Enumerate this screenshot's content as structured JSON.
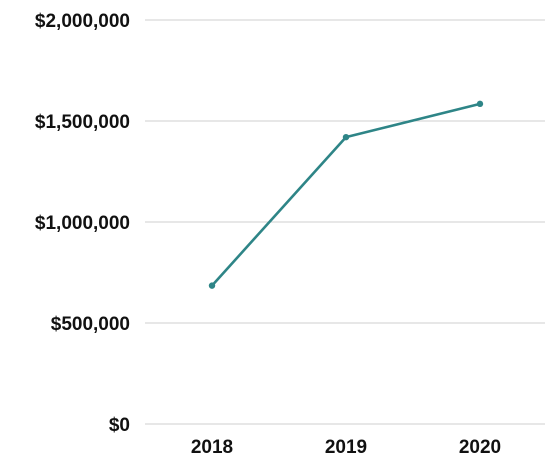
{
  "chart_data": {
    "type": "line",
    "categories": [
      "2018",
      "2019",
      "2020"
    ],
    "series": [
      {
        "values": [
          685000,
          1420000,
          1585000
        ],
        "color": "#2E8587"
      }
    ],
    "ylim": [
      0,
      2000000
    ],
    "yticks": [
      0,
      500000,
      1000000,
      1500000,
      2000000
    ],
    "ytick_labels": [
      "$0",
      "$500,000",
      "$1,000,000",
      "$1,500,000",
      "$2,000,000"
    ],
    "grid": true,
    "grid_color": "#cfcfcf",
    "legend": "none"
  }
}
